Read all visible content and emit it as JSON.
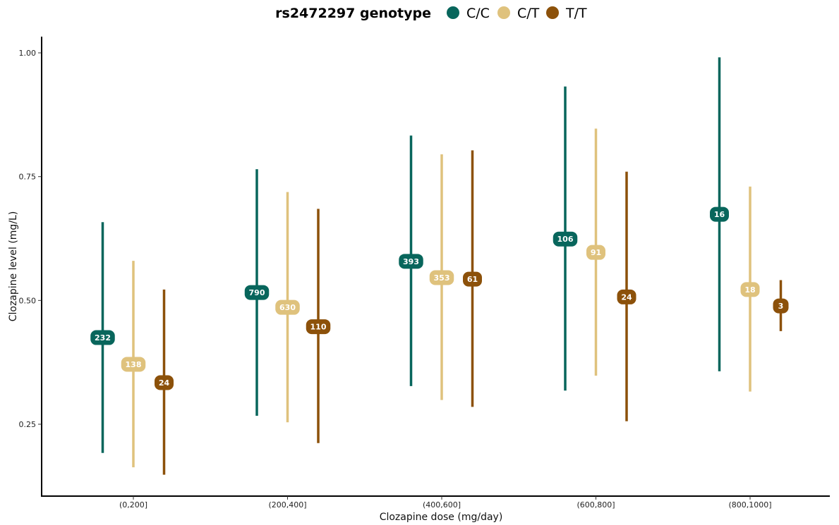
{
  "chart_data": {
    "type": "scatter",
    "subtype": "pointrange",
    "xlabel": "Clozapine dose (mg/day)",
    "ylabel": "Clozapine level (mg/L)",
    "ylim": [
      0.13,
      1.04
    ],
    "yticks": [
      0.25,
      0.5,
      0.75,
      1.0
    ],
    "ytick_labels": [
      "0.25",
      "0.50",
      "0.75",
      "1.00"
    ],
    "categories": [
      "(0,200]",
      "(200,400]",
      "(400,600]",
      "(600,800]",
      "(800,1000]"
    ],
    "legend": {
      "title": "rs2472297 genotype",
      "position": "top"
    },
    "grid": false,
    "series": [
      {
        "name": "C/C",
        "color": "#08665c",
        "center": [
          0.425,
          0.516,
          0.579,
          0.624,
          0.674
        ],
        "low": [
          0.192,
          0.267,
          0.327,
          0.318,
          0.357
        ],
        "high": [
          0.658,
          0.765,
          0.833,
          0.932,
          0.991
        ],
        "n": [
          "232",
          "790",
          "393",
          "106",
          "16"
        ]
      },
      {
        "name": "C/T",
        "color": "#dfc27d",
        "center": [
          0.371,
          0.486,
          0.546,
          0.597,
          0.522
        ],
        "low": [
          0.163,
          0.254,
          0.299,
          0.348,
          0.316
        ],
        "high": [
          0.58,
          0.719,
          0.795,
          0.847,
          0.73
        ],
        "n": [
          "138",
          "630",
          "353",
          "91",
          "18"
        ]
      },
      {
        "name": "T/T",
        "color": "#8c510a",
        "center": [
          0.334,
          0.447,
          0.543,
          0.507,
          0.489
        ],
        "low": [
          0.148,
          0.212,
          0.285,
          0.256,
          0.438
        ],
        "high": [
          0.522,
          0.685,
          0.803,
          0.76,
          0.541
        ],
        "n": [
          "24",
          "110",
          "61",
          "24",
          "3"
        ]
      }
    ]
  }
}
